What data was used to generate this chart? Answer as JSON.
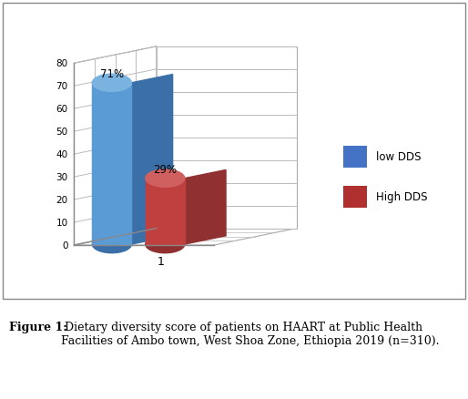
{
  "values": [
    71,
    29
  ],
  "labels": [
    "71%",
    "29%"
  ],
  "legend_labels": [
    "low DDS",
    "High DDS"
  ],
  "legend_colors": [
    "#4472c4",
    "#b03030"
  ],
  "bar_colors_main": [
    "#5b9bd5",
    "#c04040"
  ],
  "bar_colors_dark": [
    "#3a6fa8",
    "#903030"
  ],
  "bar_colors_top": [
    "#7ab3e0",
    "#d06060"
  ],
  "x_label": "1",
  "y_ticks": [
    0,
    10,
    20,
    30,
    40,
    50,
    60,
    70,
    80
  ],
  "bg_color": "#ffffff",
  "caption_bold": "Figure 1:",
  "caption_rest": " Dietary diversity score of patients on HAART at Public Health Facilities of Ambo town, West Shoa Zone, Ethiopia 2019 (n=310).",
  "caption_fontsize": 9
}
